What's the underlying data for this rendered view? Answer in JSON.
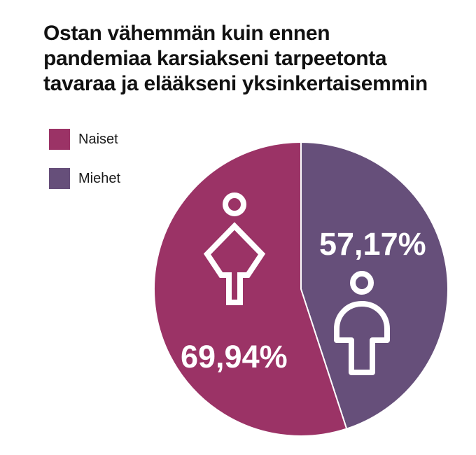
{
  "title_lines": [
    "Ostan vähemmän kuin ennen",
    "pandemiaa karsiakseni tarpeetonta",
    "tavaraa ja elääkseni yksinkertaisemmin"
  ],
  "legend": [
    {
      "label": "Naiset",
      "color": "#9b3366"
    },
    {
      "label": "Miehet",
      "color": "#664f7a"
    }
  ],
  "icons": [
    "female-figure-icon",
    "male-figure-icon"
  ],
  "chart_data": {
    "type": "pie",
    "title": "Ostan vähemmän kuin ennen pandemiaa karsiakseni tarpeetonta tavaraa ja elääkseni yksinkertaisemmin",
    "legend_position": "top-left",
    "series": [
      {
        "name": "Naiset",
        "value": 69.94,
        "label": "69,94%",
        "color": "#9b3366"
      },
      {
        "name": "Miehet",
        "value": 57.17,
        "label": "57,17%",
        "color": "#664f7a"
      }
    ]
  }
}
